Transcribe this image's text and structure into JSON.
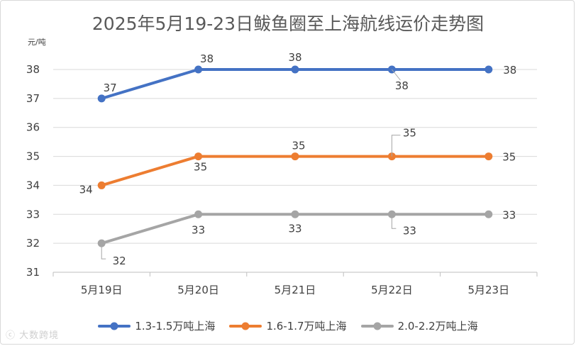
{
  "title": "2025年5月19-23日鲅鱼圈至上海航线运价走势图",
  "unit": "元/吨",
  "watermark": "大数跨境",
  "chart_data": {
    "type": "line",
    "title": "2025年5月19-23日鲅鱼圈至上海航线运价走势图",
    "ylabel": "元/吨",
    "categories": [
      "5月19日",
      "5月20日",
      "5月21日",
      "5月22日",
      "5月23日"
    ],
    "ylim": [
      31,
      38
    ],
    "yticks": [
      31,
      32,
      33,
      34,
      35,
      36,
      37,
      38
    ],
    "grid": true,
    "legend_position": "bottom",
    "series": [
      {
        "name": "1.3-1.5万吨上海",
        "color": "#4472c4",
        "values": [
          37,
          38,
          38,
          38,
          38
        ]
      },
      {
        "name": "1.6-1.7万吨上海",
        "color": "#ed7d31",
        "values": [
          34,
          35,
          35,
          35,
          35
        ]
      },
      {
        "name": "2.0-2.2万吨上海",
        "color": "#a5a5a5",
        "values": [
          32,
          33,
          33,
          33,
          33
        ]
      }
    ]
  }
}
